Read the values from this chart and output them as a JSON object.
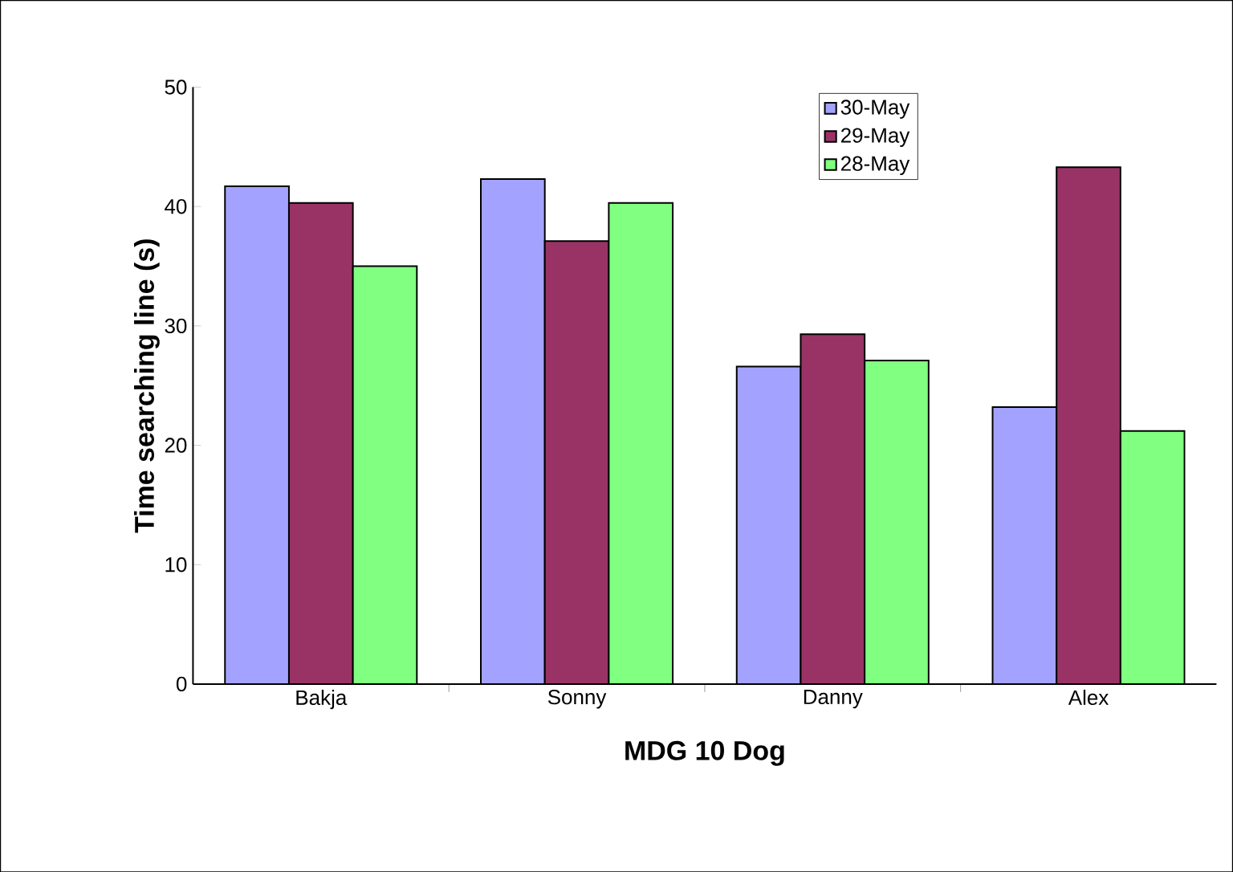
{
  "chart_data": {
    "type": "bar",
    "xlabel": "MDG 10 Dog",
    "ylabel": "Time searching line (s)",
    "categories": [
      "Bakja",
      "Sonny",
      "Danny",
      "Alex"
    ],
    "series": [
      {
        "name": "30-May",
        "color": "#a3a3ff",
        "values": [
          41.7,
          42.3,
          26.6,
          23.2
        ]
      },
      {
        "name": "29-May",
        "color": "#993366",
        "values": [
          40.3,
          37.1,
          29.3,
          43.3
        ]
      },
      {
        "name": "28-May",
        "color": "#80ff80",
        "values": [
          35.0,
          40.3,
          27.1,
          21.2
        ]
      }
    ],
    "ylim": [
      0,
      50
    ],
    "yticks": [
      0,
      10,
      20,
      30,
      40,
      50
    ],
    "grid": false,
    "legend": "top"
  }
}
